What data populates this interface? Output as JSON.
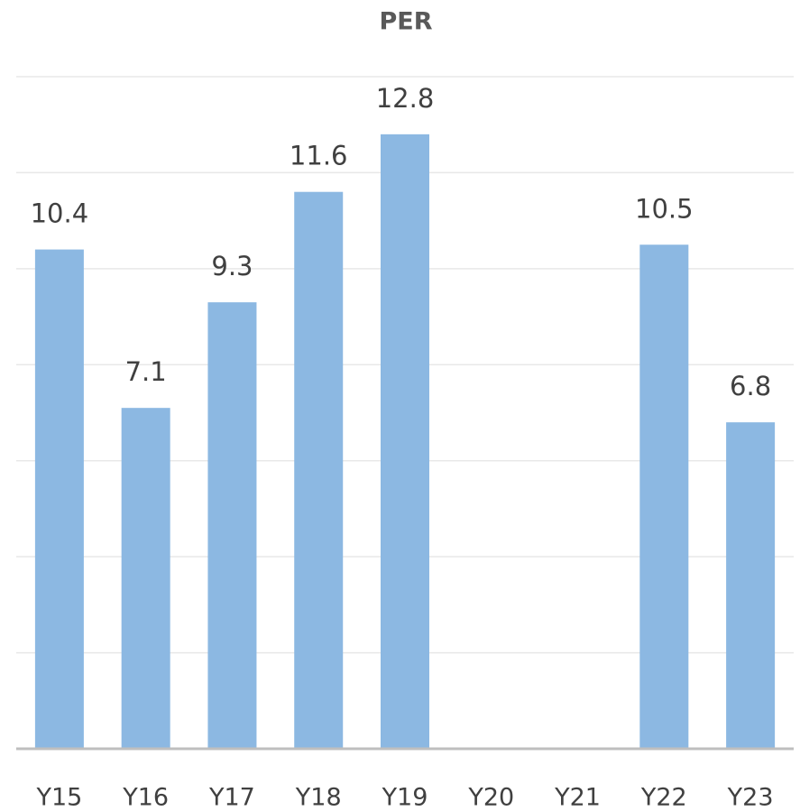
{
  "chart_data": {
    "type": "bar",
    "title": "PER",
    "categories": [
      "Y15",
      "Y16",
      "Y17",
      "Y18",
      "Y19",
      "Y20",
      "Y21",
      "Y22",
      "Y23"
    ],
    "values": [
      10.4,
      7.1,
      9.3,
      11.6,
      12.8,
      null,
      null,
      10.5,
      6.8
    ],
    "color": "#8cb8e2",
    "ylim": [
      0,
      14
    ],
    "yticks": [
      0,
      2,
      4,
      6,
      8,
      10,
      12,
      14
    ],
    "grid": true
  }
}
